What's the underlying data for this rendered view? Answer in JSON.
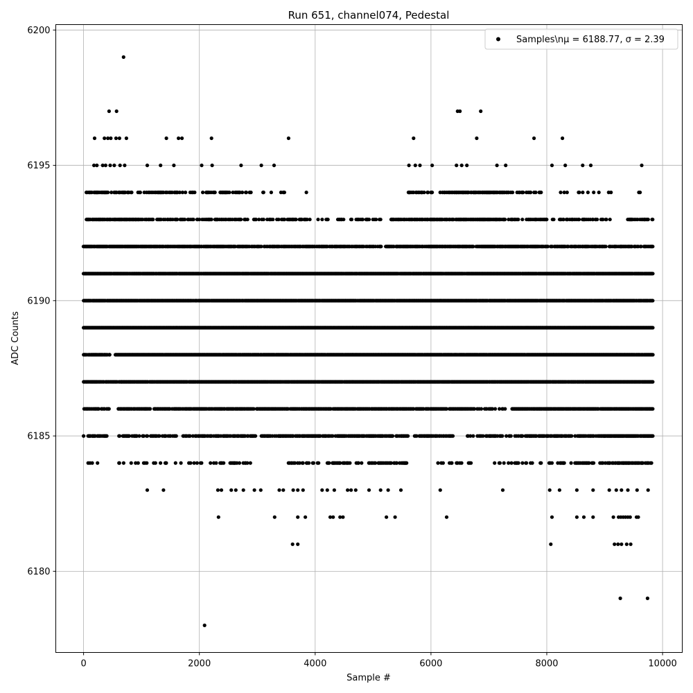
{
  "chart_data": {
    "type": "scatter",
    "title": "Run 651, channel074, Pedestal",
    "xlabel": "Sample #",
    "ylabel": "ADC Counts",
    "xlim": [
      -480,
      10340
    ],
    "ylim": [
      6177.0,
      6200.2
    ],
    "xticks": [
      0,
      2000,
      4000,
      6000,
      8000,
      10000
    ],
    "yticks": [
      6180,
      6185,
      6190,
      6195,
      6200
    ],
    "grid": true,
    "legend_position": "top-right",
    "marker_color": "#000000",
    "series": [
      {
        "name": "Samples\\nμ = 6188.77, σ = 2.39",
        "band_density": {
          "6184": [
            [
              50,
              300,
              0.1
            ],
            [
              600,
              1700,
              0.2
            ],
            [
              1800,
              2500,
              0.15
            ],
            [
              2300,
              2900,
              0.25
            ],
            [
              3500,
              4100,
              0.3
            ],
            [
              4200,
              4800,
              0.35
            ],
            [
              4900,
              5600,
              0.35
            ],
            [
              6100,
              6700,
              0.15
            ],
            [
              7100,
              7900,
              0.2
            ],
            [
              8000,
              9200,
              0.35
            ],
            [
              9200,
              9830,
              0.6
            ]
          ],
          "6185": [
            [
              0,
              400,
              0.5
            ],
            [
              600,
              1600,
              0.5
            ],
            [
              1700,
              3400,
              0.6
            ],
            [
              3400,
              5600,
              0.7
            ],
            [
              5700,
              6400,
              0.45
            ],
            [
              6600,
              7600,
              0.4
            ],
            [
              7600,
              9000,
              0.6
            ],
            [
              9000,
              9830,
              0.9
            ]
          ],
          "6186": [
            [
              0,
              450,
              0.6
            ],
            [
              600,
              3000,
              0.7
            ],
            [
              3000,
              5800,
              0.8
            ],
            [
              5800,
              6800,
              0.7
            ],
            [
              6800,
              7300,
              0.3
            ],
            [
              7400,
              9830,
              0.9
            ]
          ],
          "6187": [
            [
              0,
              650,
              0.8
            ],
            [
              650,
              9830,
              0.95
            ]
          ],
          "6188": [
            [
              0,
              450,
              0.8
            ],
            [
              550,
              9830,
              0.97
            ]
          ],
          "6189": [
            [
              0,
              9830,
              1.0
            ]
          ],
          "6190": [
            [
              0,
              9830,
              0.97
            ]
          ],
          "6191": [
            [
              0,
              9830,
              0.97
            ]
          ],
          "6192": [
            [
              0,
              1000,
              0.9
            ],
            [
              1000,
              2800,
              0.8
            ],
            [
              2800,
              4600,
              0.7
            ],
            [
              4600,
              5400,
              0.5
            ],
            [
              5400,
              7800,
              0.85
            ],
            [
              7800,
              9300,
              0.65
            ],
            [
              9300,
              9830,
              0.7
            ]
          ],
          "6193": [
            [
              50,
              900,
              0.75
            ],
            [
              900,
              3900,
              0.45
            ],
            [
              3900,
              5300,
              0.25
            ],
            [
              5300,
              6000,
              0.5
            ],
            [
              6000,
              7300,
              0.75
            ],
            [
              7300,
              9100,
              0.35
            ],
            [
              9400,
              9830,
              0.4
            ]
          ],
          "6194": [
            [
              50,
              800,
              0.6
            ],
            [
              800,
              2900,
              0.25
            ],
            [
              2900,
              4100,
              0.08
            ],
            [
              5600,
              6200,
              0.3
            ],
            [
              6200,
              7300,
              0.5
            ],
            [
              7300,
              7900,
              0.3
            ],
            [
              8100,
              9200,
              0.1
            ],
            [
              9550,
              9730,
              0.3
            ]
          ]
        },
        "extra_points": [
          [
            150,
            6184
          ],
          [
            240,
            6184
          ],
          [
            450,
            6188
          ],
          [
            1100,
            6183
          ],
          [
            1380,
            6183
          ],
          [
            2320,
            6183
          ],
          [
            2380,
            6183
          ],
          [
            2550,
            6183
          ],
          [
            2630,
            6183
          ],
          [
            2760,
            6183
          ],
          [
            2950,
            6183
          ],
          [
            3060,
            6183
          ],
          [
            3380,
            6183
          ],
          [
            3450,
            6183
          ],
          [
            3620,
            6183
          ],
          [
            3700,
            6183
          ],
          [
            3790,
            6183
          ],
          [
            4120,
            6183
          ],
          [
            4210,
            6183
          ],
          [
            4330,
            6183
          ],
          [
            4560,
            6183
          ],
          [
            4620,
            6183
          ],
          [
            4700,
            6183
          ],
          [
            4930,
            6183
          ],
          [
            5130,
            6183
          ],
          [
            5260,
            6183
          ],
          [
            5480,
            6183
          ],
          [
            6160,
            6183
          ],
          [
            7240,
            6183
          ],
          [
            8050,
            6183
          ],
          [
            8220,
            6183
          ],
          [
            8520,
            6183
          ],
          [
            8800,
            6183
          ],
          [
            9080,
            6183
          ],
          [
            9200,
            6183
          ],
          [
            9290,
            6183
          ],
          [
            9400,
            6183
          ],
          [
            9560,
            6183
          ],
          [
            9750,
            6183
          ],
          [
            2330,
            6182
          ],
          [
            3300,
            6182
          ],
          [
            3700,
            6182
          ],
          [
            3830,
            6182
          ],
          [
            4260,
            6182
          ],
          [
            4310,
            6182
          ],
          [
            4430,
            6182
          ],
          [
            4480,
            6182
          ],
          [
            5230,
            6182
          ],
          [
            5380,
            6182
          ],
          [
            6270,
            6182
          ],
          [
            8090,
            6182
          ],
          [
            8520,
            6182
          ],
          [
            8640,
            6182
          ],
          [
            8800,
            6182
          ],
          [
            9150,
            6182
          ],
          [
            9240,
            6182
          ],
          [
            9280,
            6182
          ],
          [
            9320,
            6182
          ],
          [
            9360,
            6182
          ],
          [
            9400,
            6182
          ],
          [
            9440,
            6182
          ],
          [
            9550,
            6182
          ],
          [
            9580,
            6182
          ],
          [
            3610,
            6181
          ],
          [
            3700,
            6181
          ],
          [
            8070,
            6181
          ],
          [
            9170,
            6181
          ],
          [
            9230,
            6181
          ],
          [
            9290,
            6181
          ],
          [
            9380,
            6181
          ],
          [
            9450,
            6181
          ],
          [
            9270,
            6179
          ],
          [
            9740,
            6179
          ],
          [
            2090,
            6178
          ],
          [
            180,
            6195
          ],
          [
            230,
            6195
          ],
          [
            330,
            6195
          ],
          [
            380,
            6195
          ],
          [
            460,
            6195
          ],
          [
            530,
            6195
          ],
          [
            630,
            6195
          ],
          [
            710,
            6195
          ],
          [
            1100,
            6195
          ],
          [
            1330,
            6195
          ],
          [
            1560,
            6195
          ],
          [
            2040,
            6195
          ],
          [
            2220,
            6195
          ],
          [
            2720,
            6195
          ],
          [
            3070,
            6195
          ],
          [
            3290,
            6195
          ],
          [
            5620,
            6195
          ],
          [
            5730,
            6195
          ],
          [
            5810,
            6195
          ],
          [
            6020,
            6195
          ],
          [
            6440,
            6195
          ],
          [
            6530,
            6195
          ],
          [
            6620,
            6195
          ],
          [
            7140,
            6195
          ],
          [
            7290,
            6195
          ],
          [
            8090,
            6195
          ],
          [
            8320,
            6195
          ],
          [
            8620,
            6195
          ],
          [
            8760,
            6195
          ],
          [
            9640,
            6195
          ],
          [
            190,
            6196
          ],
          [
            360,
            6196
          ],
          [
            420,
            6196
          ],
          [
            470,
            6196
          ],
          [
            560,
            6196
          ],
          [
            620,
            6196
          ],
          [
            740,
            6196
          ],
          [
            1430,
            6196
          ],
          [
            1640,
            6196
          ],
          [
            1700,
            6196
          ],
          [
            2210,
            6196
          ],
          [
            3540,
            6196
          ],
          [
            5700,
            6196
          ],
          [
            6790,
            6196
          ],
          [
            7780,
            6196
          ],
          [
            8270,
            6196
          ],
          [
            440,
            6197
          ],
          [
            570,
            6197
          ],
          [
            6460,
            6197
          ],
          [
            6500,
            6197
          ],
          [
            6860,
            6197
          ],
          [
            690,
            6199
          ]
        ]
      }
    ]
  }
}
